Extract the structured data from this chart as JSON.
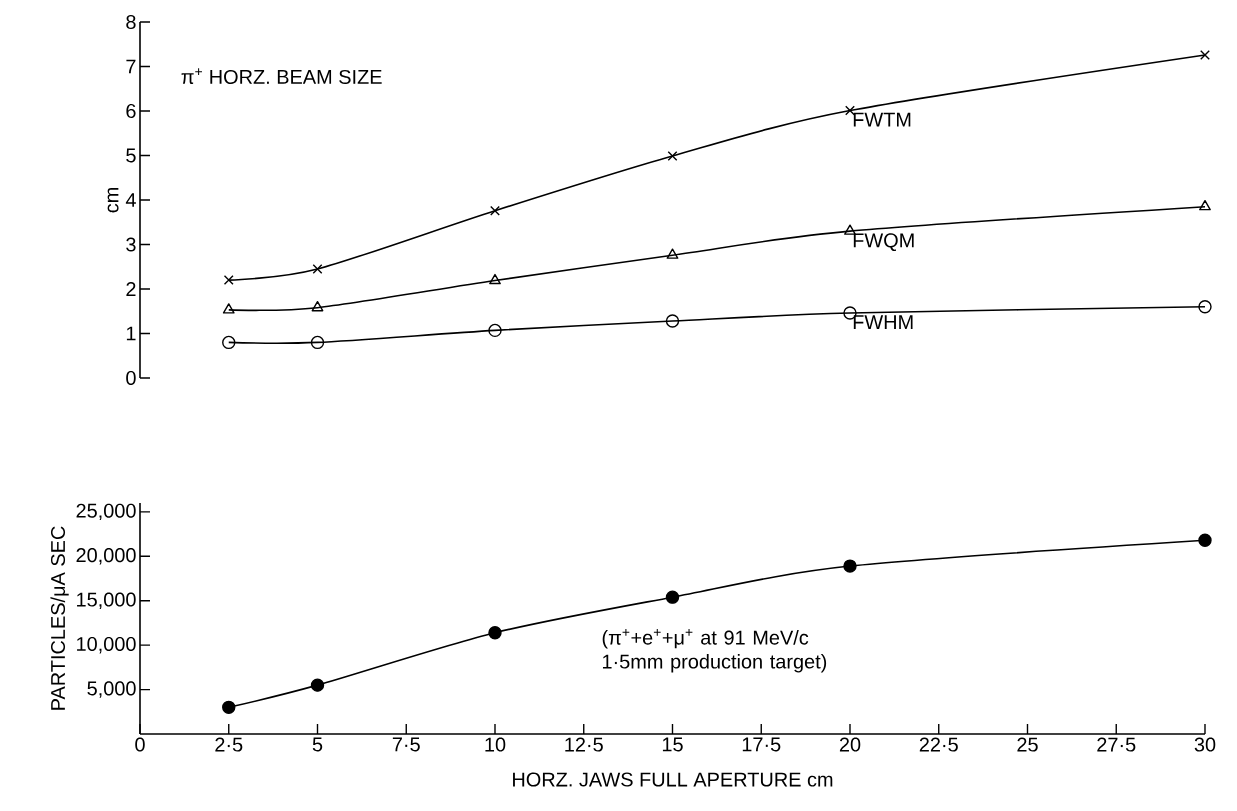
{
  "chart_data": [
    {
      "type": "line",
      "title": "π$^{+}$ HORZ. BEAM SIZE",
      "ylabel": "cm",
      "x": [
        2.5,
        5,
        10,
        15,
        20,
        30
      ],
      "xlim": [
        0,
        30
      ],
      "ylim": [
        0,
        8
      ],
      "yticks": [
        0,
        1,
        2,
        3,
        4,
        5,
        6,
        7,
        8
      ],
      "tick_labels": "y",
      "legend": false,
      "grid": false,
      "line_style": "solid",
      "series": [
        {
          "name": "FWTM",
          "color": "#000000",
          "marker": "cross",
          "values": [
            2.2,
            2.45,
            3.76,
            4.99,
            6.01,
            7.26
          ]
        },
        {
          "name": "FWQM",
          "color": "#000000",
          "marker": "triangle",
          "values": [
            1.53,
            1.58,
            2.19,
            2.76,
            3.3,
            3.85
          ]
        },
        {
          "name": "FWHM",
          "color": "#000000",
          "marker": "circle",
          "values": [
            0.8,
            0.8,
            1.07,
            1.28,
            1.46,
            1.6
          ]
        }
      ]
    },
    {
      "type": "line",
      "xlabel": "HORZ. JAWS FULL APERTURE   cm",
      "ylabel": "PARTICLES/μA SEC",
      "x": [
        2.5,
        5,
        10,
        15,
        20,
        30
      ],
      "xlim": [
        0,
        30
      ],
      "ylim": [
        0,
        26000
      ],
      "xticks": [
        0,
        {
          "value": 2.5,
          "label": "2·5"
        },
        5,
        {
          "value": 7.5,
          "label": "7·5"
        },
        10,
        {
          "value": 12.5,
          "label": "12·5"
        },
        15,
        {
          "value": 17.5,
          "label": "17·5"
        },
        20,
        {
          "value": 22.5,
          "label": "22·5"
        },
        25,
        {
          "value": 27.5,
          "label": "27·5"
        },
        30
      ],
      "yticks": [
        {
          "value": 5000,
          "label": "5,000"
        },
        {
          "value": 10000,
          "label": "10,000"
        },
        {
          "value": 15000,
          "label": "15,000"
        },
        {
          "value": 20000,
          "label": "20,000"
        },
        {
          "value": 25000,
          "label": "25,000"
        }
      ],
      "legend": false,
      "grid": false,
      "line_style": "solid",
      "annotations": [
        "(π$^{+}$+e$^{+}$+μ$^{+}$ at 91 MeV/c 1·5mm production target)"
      ],
      "series": [
        {
          "color": "#000000",
          "marker": "circle",
          "values": [
            3000,
            5500,
            11400,
            15400,
            18900,
            21800
          ]
        }
      ]
    }
  ]
}
